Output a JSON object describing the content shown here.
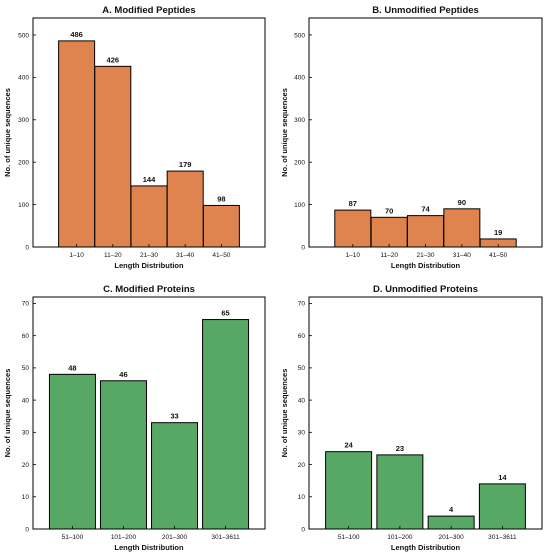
{
  "chart_data": [
    {
      "type": "bar",
      "title": "A. Modified Peptides",
      "xlabel": "Length Distribution",
      "ylabel": "No. of unique sequences",
      "categories": [
        "1–10",
        "11–20",
        "21–30",
        "31–40",
        "41–50"
      ],
      "values": [
        486,
        426,
        144,
        179,
        98
      ],
      "ylim": [
        0,
        540
      ],
      "yticks": [
        0,
        100,
        200,
        300,
        400,
        500
      ],
      "color": "#e0844f"
    },
    {
      "type": "bar",
      "title": "B. Unmodified  Peptides",
      "xlabel": "Length Distribution",
      "ylabel": "No. of unique sequences",
      "categories": [
        "1–10",
        "11–20",
        "21–30",
        "31–40",
        "41–50"
      ],
      "values": [
        87,
        70,
        74,
        90,
        19
      ],
      "ylim": [
        0,
        540
      ],
      "yticks": [
        0,
        100,
        200,
        300,
        400,
        500
      ],
      "color": "#e0844f"
    },
    {
      "type": "bar",
      "title": "C. Modified Proteins",
      "xlabel": "Length Distribution",
      "ylabel": "No. of unique sequences",
      "categories": [
        "51–100",
        "101–200",
        "201–300",
        "301–3611"
      ],
      "values": [
        48,
        46,
        33,
        65
      ],
      "ylim": [
        0,
        72
      ],
      "yticks": [
        0,
        10,
        20,
        30,
        40,
        50,
        60,
        70
      ],
      "color": "#57a765"
    },
    {
      "type": "bar",
      "title": "D. Unmodified Proteins",
      "xlabel": "Length Distribution",
      "ylabel": "No. of unique sequences",
      "categories": [
        "51–100",
        "101–200",
        "201–300",
        "301–3611"
      ],
      "values": [
        24,
        23,
        4,
        14
      ],
      "ylim": [
        0,
        72
      ],
      "yticks": [
        0,
        10,
        20,
        30,
        40,
        50,
        60,
        70
      ],
      "color": "#57a765"
    }
  ]
}
